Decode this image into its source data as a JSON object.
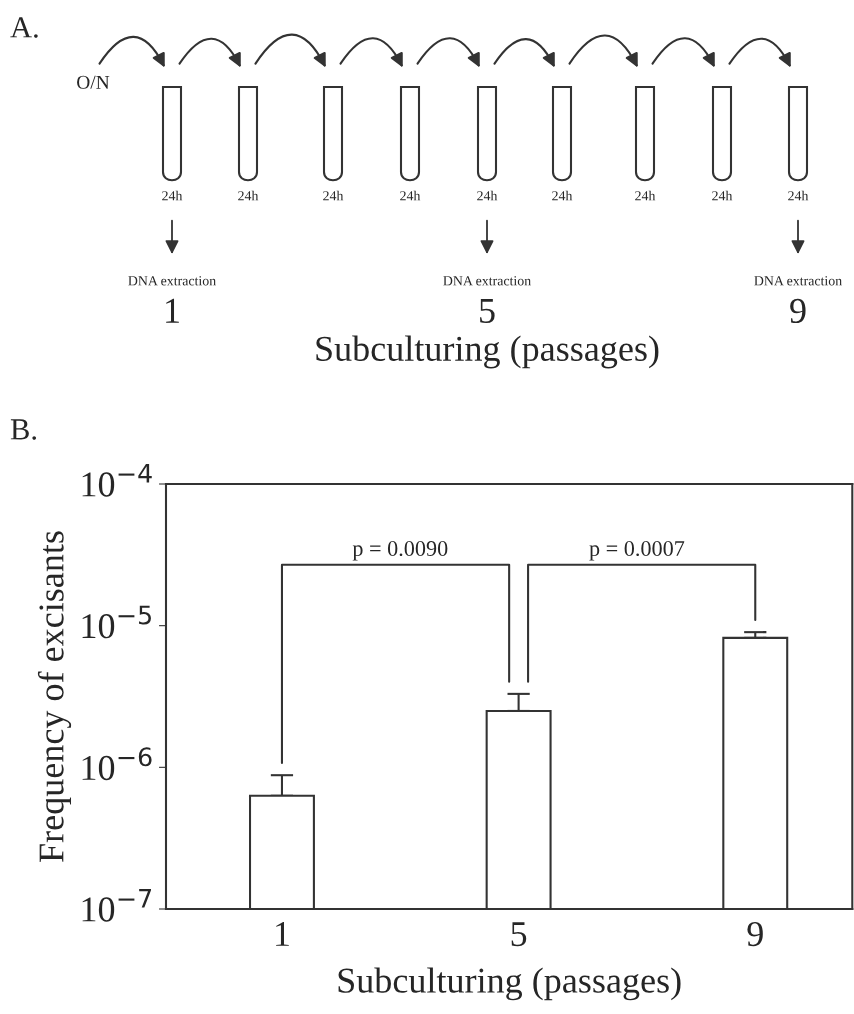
{
  "chart_data": [
    {
      "type": "other",
      "title": "A.",
      "xlabel": "Subculturing (passages)",
      "annotations": [
        "O/N",
        "24h",
        "24h",
        "24h",
        "24h",
        "24h",
        "24h",
        "24h",
        "24h",
        "24h",
        "DNA extraction",
        "DNA extraction",
        "DNA extraction",
        "1",
        "5",
        "9"
      ]
    },
    {
      "type": "bar",
      "title": "B.",
      "categories": [
        "1",
        "5",
        "9"
      ],
      "values": [
        6.3e-07,
        2.5e-06,
        8.2e-06
      ],
      "errors": [
        [
          6.3e-07,
          8.8e-07
        ],
        [
          2.5e-06,
          3.3e-06
        ],
        [
          8.2e-06,
          9e-06
        ]
      ],
      "color": "#ffffff",
      "log": true,
      "ylim": [
        1e-07,
        0.0001
      ],
      "yticks": [
        {
          "value": 1e-07,
          "label": "10$^{−7}$"
        },
        {
          "value": 1e-06,
          "label": "10$^{−6}$"
        },
        {
          "value": 1e-05,
          "label": "10$^{−5}$"
        },
        {
          "value": 0.0001,
          "label": "10$^{−4}$"
        }
      ],
      "ylabel": "Frequency of excisants",
      "xlabel": "Subculturing (passages)",
      "annotations": [
        "p = 0.0090",
        "p = 0.0007"
      ]
    }
  ]
}
